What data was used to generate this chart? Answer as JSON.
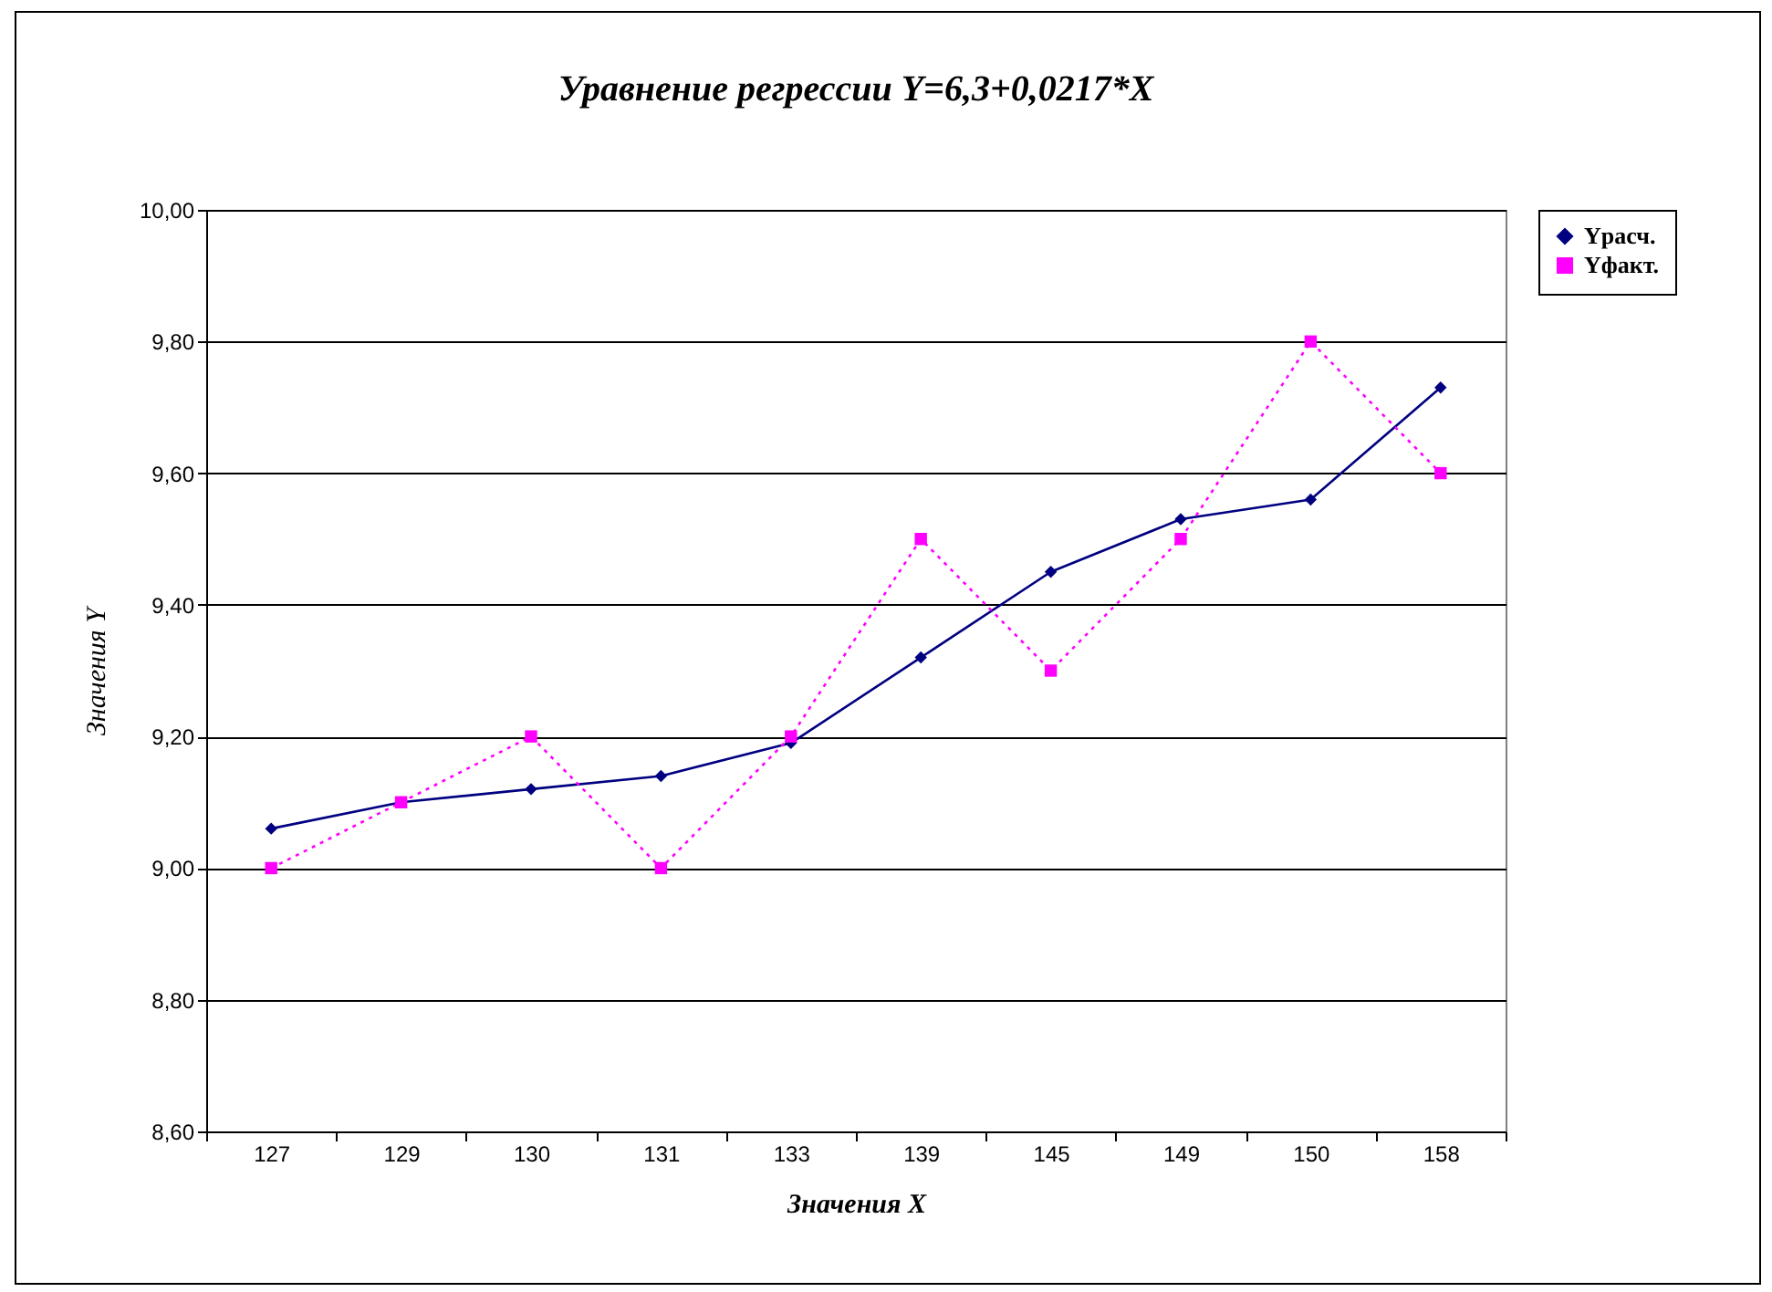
{
  "chart_data": {
    "type": "line",
    "title": "Уравнение регрессии Y=6,3+0,0217*X",
    "xlabel": "Значения X",
    "ylabel": "Значения Y",
    "categories": [
      "127",
      "129",
      "130",
      "131",
      "133",
      "139",
      "145",
      "149",
      "150",
      "158"
    ],
    "series": [
      {
        "name": "Yрасч.",
        "color": "#000080",
        "marker": "diamond",
        "line_style": "solid",
        "values": [
          9.06,
          9.1,
          9.12,
          9.14,
          9.19,
          9.32,
          9.45,
          9.53,
          9.56,
          9.73
        ]
      },
      {
        "name": "Yфакт.",
        "color": "#ff00ff",
        "marker": "square",
        "line_style": "dotted",
        "values": [
          9.0,
          9.1,
          9.2,
          9.0,
          9.2,
          9.5,
          9.3,
          9.5,
          9.8,
          9.6
        ]
      }
    ],
    "ylim": [
      8.6,
      10.0
    ],
    "yticks": [
      {
        "value": 8.6,
        "label": "8,60"
      },
      {
        "value": 8.8,
        "label": "8,80"
      },
      {
        "value": 9.0,
        "label": "9,00"
      },
      {
        "value": 9.2,
        "label": "9,20"
      },
      {
        "value": 9.4,
        "label": "9,40"
      },
      {
        "value": 9.6,
        "label": "9,60"
      },
      {
        "value": 9.8,
        "label": "9,80"
      },
      {
        "value": 10.0,
        "label": "10,00"
      }
    ],
    "grid": "y",
    "legend": "right"
  }
}
